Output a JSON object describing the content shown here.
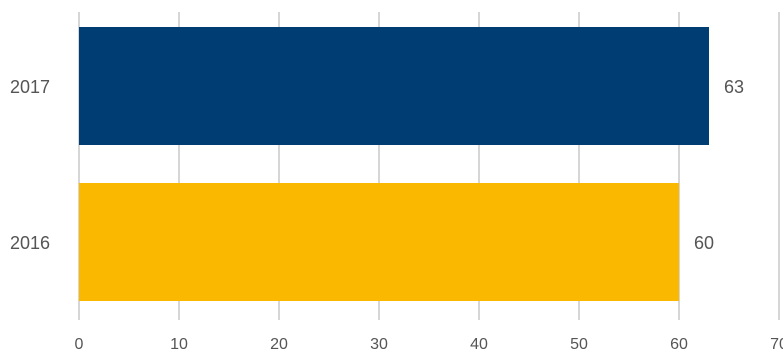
{
  "chart_data": {
    "type": "bar",
    "orientation": "horizontal",
    "categories": [
      "2017",
      "2016"
    ],
    "values": [
      63,
      60
    ],
    "colors": [
      "#003d73",
      "#fab800"
    ],
    "xlim": [
      0,
      70
    ],
    "x_ticks": [
      0,
      10,
      20,
      30,
      40,
      50,
      60,
      70
    ],
    "grid": "vertical",
    "legend": "none",
    "title": "",
    "xlabel": "",
    "ylabel": ""
  }
}
